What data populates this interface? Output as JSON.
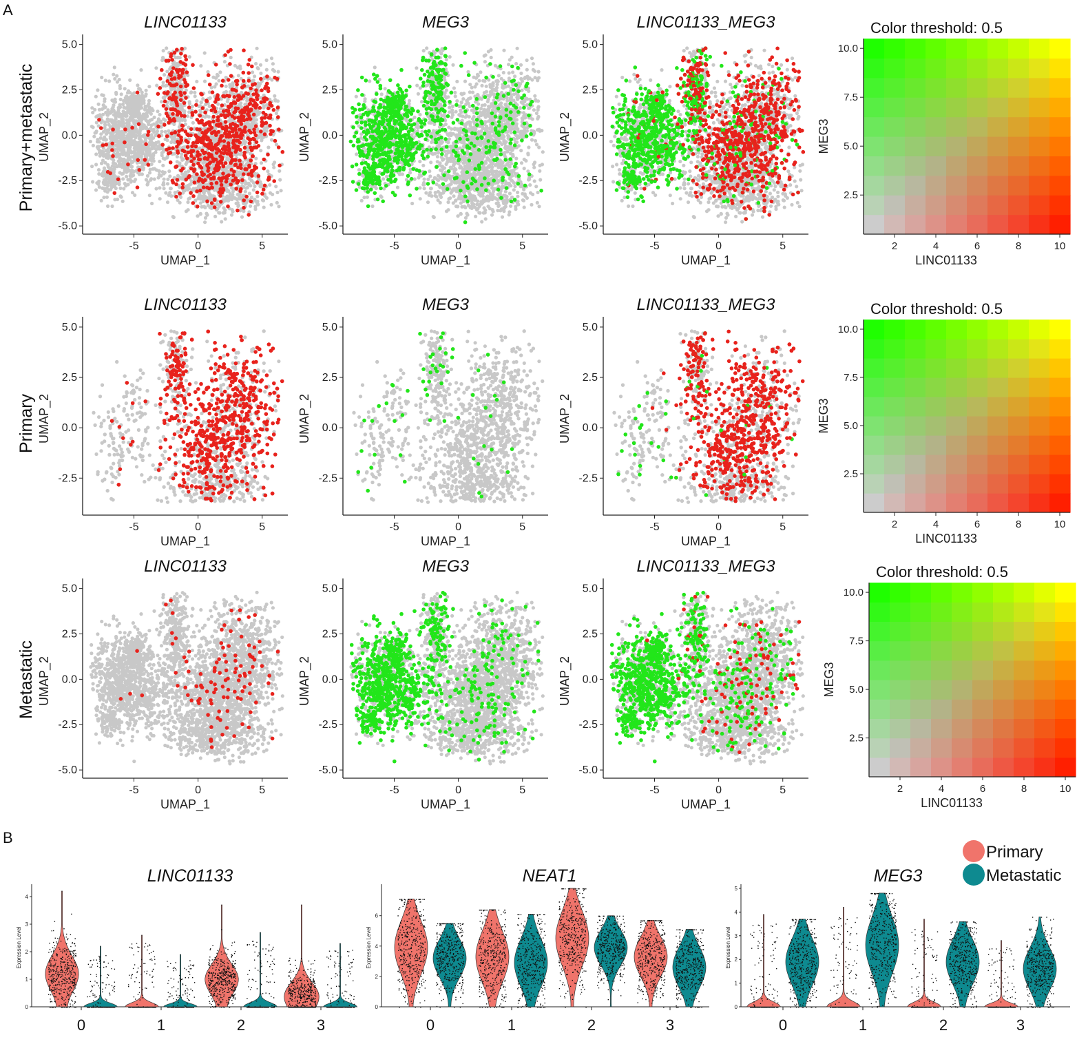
{
  "panel_labels": {
    "a": "A",
    "b": "B"
  },
  "row_labels": [
    "Primary+metastatic",
    "Primary",
    "Metastatic"
  ],
  "umap": {
    "titles": [
      "LINC01133",
      "MEG3",
      "LINC01133_MEG3"
    ],
    "xlabel": "UMAP_1",
    "ylabel": "UMAP_2",
    "xticks": [
      "-5",
      "0",
      "5"
    ],
    "yticks_full": [
      "-5.0",
      "-2.5",
      "0.0",
      "2.5",
      "5.0"
    ],
    "yticks_primary": [
      "-2.5",
      "0.0",
      "2.5",
      "5.0"
    ]
  },
  "legend_grid": {
    "title": "Color threshold: 0.5",
    "xlabel": "LINC01133",
    "ylabel": "MEG3",
    "xticks": [
      "2",
      "4",
      "6",
      "8",
      "10"
    ],
    "yticks": [
      "2.5",
      "5.0",
      "7.5",
      "10.0"
    ]
  },
  "violin": {
    "ylabel": "Expression Level",
    "legend": [
      {
        "label": "Primary",
        "color": "#f0746b"
      },
      {
        "label": "Metastatic",
        "color": "#0e8a90"
      }
    ]
  },
  "colors": {
    "grey": "#c8c8c8",
    "red": "#e8221c",
    "green": "#22e61a",
    "yellow": "#ffff00"
  },
  "chart_data": [
    {
      "type": "scatter",
      "panel": "A",
      "row": "Primary+metastatic",
      "title": "LINC01133",
      "xlabel": "UMAP_1",
      "ylabel": "UMAP_2",
      "xlim": [
        -9,
        7
      ],
      "ylim": [
        -5.3,
        5.1
      ],
      "highlight": "LINC01133 expressing cells (red), concentrated at UMAP_1 0 to 6"
    },
    {
      "type": "scatter",
      "panel": "A",
      "row": "Primary+metastatic",
      "title": "MEG3",
      "xlabel": "UMAP_1",
      "ylabel": "UMAP_2",
      "xlim": [
        -9,
        7
      ],
      "ylim": [
        -5.3,
        5.1
      ],
      "highlight": "MEG3 expressing cells (green), concentrated at UMAP_1 -8 to -3"
    },
    {
      "type": "scatter",
      "panel": "A",
      "row": "Primary+metastatic",
      "title": "LINC01133_MEG3",
      "xlabel": "UMAP_1",
      "ylabel": "UMAP_2",
      "xlim": [
        -9,
        7
      ],
      "ylim": [
        -5.3,
        5.1
      ],
      "highlight": "blend"
    },
    {
      "type": "heatmap",
      "panel": "A",
      "row": "Primary+metastatic",
      "title": "Color threshold: 0.5",
      "xlabel": "LINC01133",
      "ylabel": "MEG3",
      "x": [
        1,
        2,
        3,
        4,
        5,
        6,
        7,
        8,
        9,
        10
      ],
      "y": [
        1,
        2,
        3,
        4,
        5,
        6,
        7,
        8,
        9,
        10
      ]
    },
    {
      "type": "scatter",
      "panel": "A",
      "row": "Primary",
      "title": "LINC01133",
      "xlabel": "UMAP_1",
      "ylabel": "UMAP_2",
      "xlim": [
        -9,
        7
      ],
      "ylim": [
        -4.2,
        5.1
      ]
    },
    {
      "type": "scatter",
      "panel": "A",
      "row": "Primary",
      "title": "MEG3",
      "xlabel": "UMAP_1",
      "ylabel": "UMAP_2",
      "xlim": [
        -9,
        7
      ],
      "ylim": [
        -4.2,
        5.1
      ]
    },
    {
      "type": "scatter",
      "panel": "A",
      "row": "Primary",
      "title": "LINC01133_MEG3",
      "xlabel": "UMAP_1",
      "ylabel": "UMAP_2",
      "xlim": [
        -9,
        7
      ],
      "ylim": [
        -4.2,
        5.1
      ]
    },
    {
      "type": "heatmap",
      "panel": "A",
      "row": "Primary",
      "title": "Color threshold: 0.5",
      "xlabel": "LINC01133",
      "ylabel": "MEG3"
    },
    {
      "type": "scatter",
      "panel": "A",
      "row": "Metastatic",
      "title": "LINC01133",
      "xlabel": "UMAP_1",
      "ylabel": "UMAP_2",
      "xlim": [
        -9,
        7
      ],
      "ylim": [
        -5.3,
        5.1
      ]
    },
    {
      "type": "scatter",
      "panel": "A",
      "row": "Metastatic",
      "title": "MEG3",
      "xlabel": "UMAP_1",
      "ylabel": "UMAP_2",
      "xlim": [
        -9,
        7
      ],
      "ylim": [
        -5.3,
        5.1
      ]
    },
    {
      "type": "scatter",
      "panel": "A",
      "row": "Metastatic",
      "title": "LINC01133_MEG3",
      "xlabel": "UMAP_1",
      "ylabel": "UMAP_2",
      "xlim": [
        -9,
        7
      ],
      "ylim": [
        -5.3,
        5.1
      ]
    },
    {
      "type": "heatmap",
      "panel": "A",
      "row": "Metastatic",
      "title": "Color threshold: 0.5",
      "xlabel": "LINC01133",
      "ylabel": "MEG3"
    },
    {
      "type": "violin",
      "panel": "B",
      "title": "LINC01133",
      "ylabel": "Expression Level",
      "categories": [
        "0",
        "1",
        "2",
        "3"
      ],
      "ylim": [
        0,
        4.3
      ],
      "yticks": [
        "0",
        "1",
        "2",
        "3",
        "4"
      ],
      "series": [
        {
          "name": "Primary",
          "max": [
            4.2,
            2.6,
            3.7,
            3.7
          ],
          "median": [
            1.2,
            0,
            1.0,
            0.4
          ]
        },
        {
          "name": "Metastatic",
          "max": [
            2.2,
            1.9,
            2.7,
            2.3
          ],
          "median": [
            0,
            0,
            0,
            0
          ]
        }
      ]
    },
    {
      "type": "violin",
      "panel": "B",
      "title": "NEAT1",
      "ylabel": "Expression Level",
      "categories": [
        "0",
        "1",
        "2",
        "3"
      ],
      "ylim": [
        0,
        7.8
      ],
      "yticks": [
        "0",
        "2",
        "4",
        "6"
      ],
      "series": [
        {
          "name": "Primary",
          "max": [
            7.1,
            6.4,
            7.8,
            5.7
          ],
          "median": [
            3.9,
            3.3,
            4.5,
            3.3
          ]
        },
        {
          "name": "Metastatic",
          "max": [
            5.5,
            6.1,
            6.0,
            5.1
          ],
          "median": [
            3.2,
            2.9,
            3.9,
            2.6
          ]
        }
      ]
    },
    {
      "type": "violin",
      "panel": "B",
      "title": "MEG3",
      "ylabel": "Expression Level",
      "categories": [
        "0",
        "1",
        "2",
        "3"
      ],
      "ylim": [
        0,
        5
      ],
      "yticks": [
        "0",
        "1",
        "2",
        "3",
        "4",
        "5"
      ],
      "series": [
        {
          "name": "Primary",
          "max": [
            3.9,
            4.2,
            3.7,
            2.8
          ],
          "median": [
            0,
            0,
            0,
            0
          ]
        },
        {
          "name": "Metastatic",
          "max": [
            3.7,
            4.8,
            3.6,
            3.8
          ],
          "median": [
            1.9,
            2.6,
            1.9,
            1.6
          ]
        }
      ]
    }
  ]
}
